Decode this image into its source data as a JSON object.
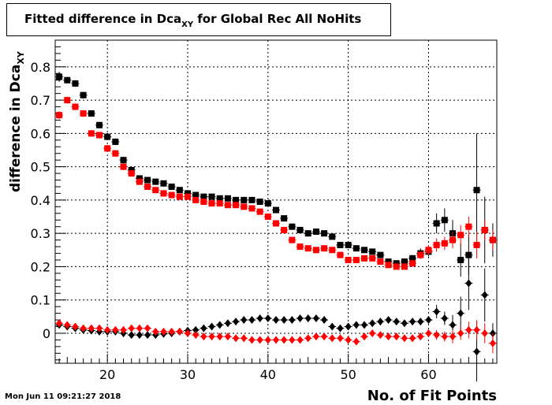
{
  "title": {
    "main": "Fitted difference in Dca",
    "sub": "XY",
    "rest": " for Global Rec All NoHits"
  },
  "timestamp": "Mon Jun 11 09:21:27 2018",
  "chart_data": {
    "type": "scatter",
    "xlabel": "No. of Fit Points",
    "ylabel_main": "difference in Dca",
    "ylabel_sub": "XY",
    "xlim": [
      13.5,
      68.5
    ],
    "ylim": [
      -0.09,
      0.88
    ],
    "xticks": [
      20,
      30,
      40,
      50,
      60
    ],
    "yticks": [
      0,
      0.1,
      0.2,
      0.3,
      0.4,
      0.5,
      0.6,
      0.7,
      0.8
    ],
    "ytick_labels": [
      "0",
      "0.1",
      "0.2",
      "0.3",
      "0.4",
      "0.5",
      "0.6",
      "0.7",
      "0.8"
    ],
    "grid": true,
    "series": [
      {
        "marker": "square",
        "color": "#000000",
        "x": [
          14,
          15,
          16,
          17,
          18,
          19,
          20,
          21,
          22,
          23,
          24,
          25,
          26,
          27,
          28,
          29,
          30,
          31,
          32,
          33,
          34,
          35,
          36,
          37,
          38,
          39,
          40,
          41,
          42,
          43,
          44,
          45,
          46,
          47,
          48,
          49,
          50,
          51,
          52,
          53,
          54,
          55,
          56,
          57,
          58,
          59,
          60,
          61,
          62,
          63,
          64,
          65,
          66,
          67,
          68
        ],
        "y": [
          0.77,
          0.76,
          0.75,
          0.715,
          0.66,
          0.625,
          0.59,
          0.575,
          0.52,
          0.49,
          0.465,
          0.46,
          0.455,
          0.45,
          0.44,
          0.43,
          0.42,
          0.415,
          0.41,
          0.41,
          0.405,
          0.405,
          0.4,
          0.4,
          0.4,
          0.395,
          0.39,
          0.37,
          0.345,
          0.32,
          0.31,
          0.3,
          0.305,
          0.3,
          0.29,
          0.265,
          0.265,
          0.255,
          0.25,
          0.245,
          0.235,
          0.215,
          0.21,
          0.215,
          0.225,
          0.24,
          0.245,
          0.33,
          0.34,
          0.3,
          0.22,
          0.235,
          0.43,
          0.31,
          0.28
        ],
        "err": [
          0.015,
          0.01,
          0.01,
          0.01,
          0.01,
          0.01,
          0.01,
          0.01,
          0.01,
          0.01,
          0.008,
          0.008,
          0.008,
          0.008,
          0.008,
          0.008,
          0.008,
          0.008,
          0.008,
          0.008,
          0.008,
          0.008,
          0.008,
          0.008,
          0.008,
          0.008,
          0.008,
          0.008,
          0.008,
          0.008,
          0.008,
          0.008,
          0.008,
          0.008,
          0.008,
          0.008,
          0.008,
          0.008,
          0.008,
          0.008,
          0.008,
          0.008,
          0.008,
          0.01,
          0.01,
          0.015,
          0.015,
          0.03,
          0.035,
          0.04,
          0.05,
          0.06,
          0.17,
          0.1,
          0.05
        ]
      },
      {
        "marker": "square",
        "color": "#ff0000",
        "x": [
          14,
          15,
          16,
          17,
          18,
          19,
          20,
          21,
          22,
          23,
          24,
          25,
          26,
          27,
          28,
          29,
          30,
          31,
          32,
          33,
          34,
          35,
          36,
          37,
          38,
          39,
          40,
          41,
          42,
          43,
          44,
          45,
          46,
          47,
          48,
          49,
          50,
          51,
          52,
          53,
          54,
          55,
          56,
          57,
          58,
          59,
          60,
          61,
          62,
          63,
          64,
          65,
          66,
          67,
          68
        ],
        "y": [
          0.655,
          0.7,
          0.68,
          0.66,
          0.6,
          0.595,
          0.555,
          0.54,
          0.5,
          0.48,
          0.455,
          0.44,
          0.43,
          0.42,
          0.415,
          0.41,
          0.41,
          0.4,
          0.395,
          0.39,
          0.39,
          0.385,
          0.385,
          0.38,
          0.375,
          0.365,
          0.35,
          0.33,
          0.31,
          0.28,
          0.26,
          0.255,
          0.25,
          0.255,
          0.25,
          0.235,
          0.22,
          0.22,
          0.225,
          0.225,
          0.215,
          0.205,
          0.2,
          0.2,
          0.21,
          0.235,
          0.25,
          0.265,
          0.27,
          0.28,
          0.295,
          0.32,
          0.265,
          0.31,
          0.28
        ],
        "err": [
          0.012,
          0.01,
          0.01,
          0.01,
          0.01,
          0.01,
          0.01,
          0.01,
          0.01,
          0.01,
          0.008,
          0.008,
          0.008,
          0.008,
          0.008,
          0.008,
          0.008,
          0.008,
          0.008,
          0.008,
          0.008,
          0.008,
          0.008,
          0.008,
          0.008,
          0.008,
          0.008,
          0.008,
          0.008,
          0.008,
          0.008,
          0.008,
          0.008,
          0.008,
          0.008,
          0.008,
          0.008,
          0.008,
          0.008,
          0.008,
          0.008,
          0.008,
          0.008,
          0.008,
          0.01,
          0.012,
          0.015,
          0.02,
          0.02,
          0.025,
          0.03,
          0.03,
          0.04,
          0.03,
          0.03
        ]
      },
      {
        "marker": "diamond",
        "color": "#000000",
        "x": [
          14,
          15,
          16,
          17,
          18,
          19,
          20,
          21,
          22,
          23,
          24,
          25,
          26,
          27,
          28,
          29,
          30,
          31,
          32,
          33,
          34,
          35,
          36,
          37,
          38,
          39,
          40,
          41,
          42,
          43,
          44,
          45,
          46,
          47,
          48,
          49,
          50,
          51,
          52,
          53,
          54,
          55,
          56,
          57,
          58,
          59,
          60,
          61,
          62,
          63,
          64,
          65,
          66,
          67,
          68
        ],
        "y": [
          0.025,
          0.02,
          0.015,
          0.01,
          0.008,
          0.005,
          0.005,
          0.005,
          0.0,
          -0.005,
          -0.005,
          -0.005,
          -0.005,
          -0.002,
          0.0,
          0.005,
          0.008,
          0.01,
          0.015,
          0.02,
          0.025,
          0.03,
          0.035,
          0.04,
          0.04,
          0.045,
          0.045,
          0.04,
          0.04,
          0.04,
          0.045,
          0.045,
          0.045,
          0.04,
          0.02,
          0.015,
          0.02,
          0.025,
          0.025,
          0.03,
          0.035,
          0.04,
          0.035,
          0.03,
          0.035,
          0.035,
          0.04,
          0.065,
          0.045,
          0.025,
          0.06,
          0.15,
          -0.055,
          0.115,
          0.0
        ],
        "err": [
          0.008,
          0.005,
          0.005,
          0.005,
          0.005,
          0.005,
          0.005,
          0.005,
          0.005,
          0.005,
          0.005,
          0.005,
          0.005,
          0.005,
          0.005,
          0.005,
          0.005,
          0.005,
          0.005,
          0.005,
          0.005,
          0.005,
          0.005,
          0.005,
          0.005,
          0.005,
          0.005,
          0.005,
          0.005,
          0.005,
          0.005,
          0.005,
          0.005,
          0.005,
          0.005,
          0.005,
          0.005,
          0.005,
          0.005,
          0.005,
          0.005,
          0.005,
          0.005,
          0.006,
          0.006,
          0.008,
          0.01,
          0.02,
          0.02,
          0.03,
          0.05,
          0.08,
          0.09,
          0.08,
          0.03
        ]
      },
      {
        "marker": "diamond",
        "color": "#ff0000",
        "x": [
          14,
          15,
          16,
          17,
          18,
          19,
          20,
          21,
          22,
          23,
          24,
          25,
          26,
          27,
          28,
          29,
          30,
          31,
          32,
          33,
          34,
          35,
          36,
          37,
          38,
          39,
          40,
          41,
          42,
          43,
          44,
          45,
          46,
          47,
          48,
          49,
          50,
          51,
          52,
          53,
          54,
          55,
          56,
          57,
          58,
          59,
          60,
          61,
          62,
          63,
          64,
          65,
          66,
          67,
          68
        ],
        "y": [
          0.03,
          0.025,
          0.02,
          0.015,
          0.015,
          0.015,
          0.01,
          0.01,
          0.01,
          0.015,
          0.015,
          0.015,
          0.005,
          0.005,
          0.005,
          0.005,
          0.0,
          -0.005,
          -0.01,
          -0.01,
          -0.01,
          -0.01,
          -0.015,
          -0.015,
          -0.02,
          -0.02,
          -0.02,
          -0.02,
          -0.02,
          -0.02,
          -0.02,
          -0.015,
          -0.01,
          -0.01,
          -0.015,
          -0.015,
          -0.02,
          -0.025,
          -0.01,
          0.0,
          -0.005,
          -0.01,
          -0.01,
          -0.015,
          -0.015,
          -0.01,
          0.0,
          -0.005,
          -0.01,
          -0.01,
          0.0,
          0.01,
          0.01,
          0.0,
          -0.03
        ],
        "err": [
          0.008,
          0.005,
          0.005,
          0.005,
          0.005,
          0.005,
          0.005,
          0.005,
          0.005,
          0.005,
          0.005,
          0.005,
          0.005,
          0.005,
          0.005,
          0.005,
          0.005,
          0.005,
          0.005,
          0.005,
          0.005,
          0.005,
          0.005,
          0.005,
          0.005,
          0.005,
          0.005,
          0.005,
          0.005,
          0.005,
          0.005,
          0.005,
          0.005,
          0.005,
          0.005,
          0.005,
          0.005,
          0.005,
          0.005,
          0.005,
          0.005,
          0.005,
          0.005,
          0.006,
          0.008,
          0.01,
          0.01,
          0.015,
          0.015,
          0.02,
          0.02,
          0.025,
          0.03,
          0.03,
          0.03
        ]
      }
    ]
  }
}
